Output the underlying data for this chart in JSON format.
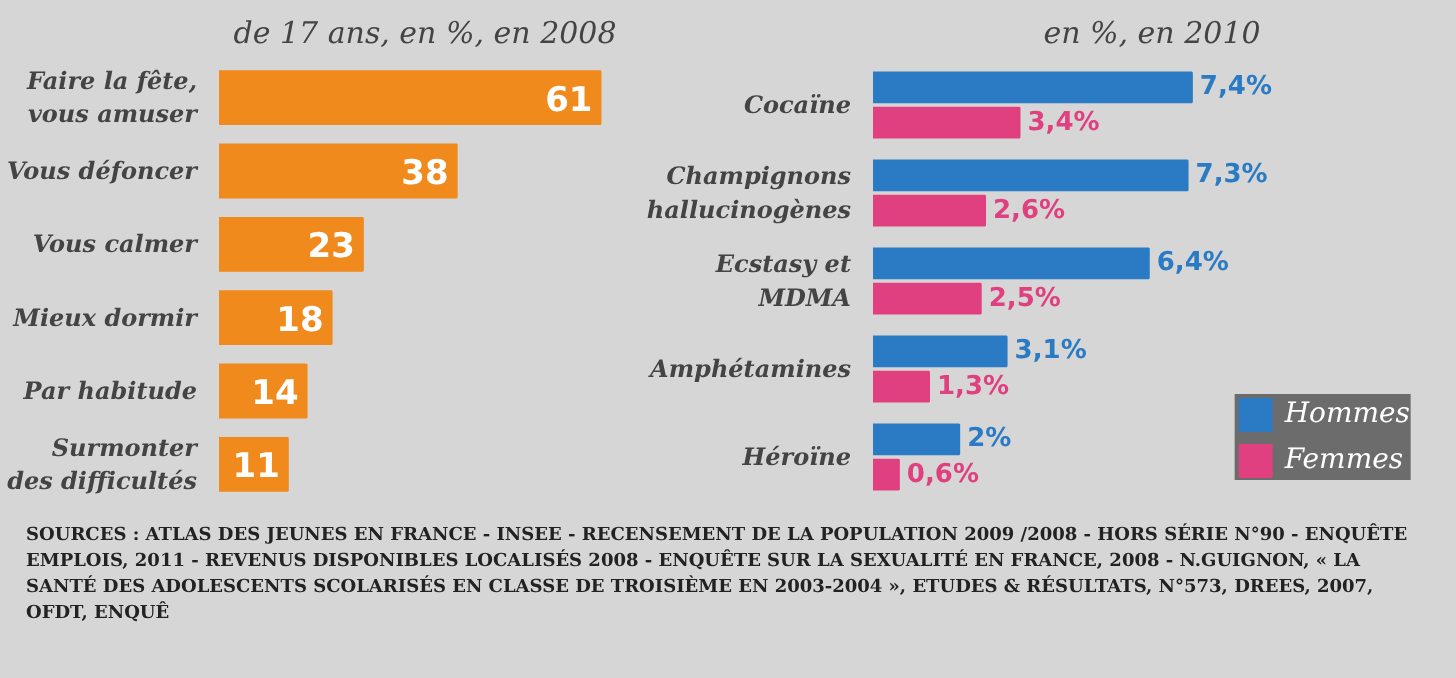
{
  "chart_data": [
    {
      "type": "bar",
      "orientation": "horizontal",
      "title": "de 17 ans, en %, en 2008",
      "categories": [
        "Faire la fête,\nvous amuser",
        "Vous défoncer",
        "Vous calmer",
        "Mieux dormir",
        "Par habitude",
        "Surmonter\ndes difficultés"
      ],
      "values": [
        61,
        38,
        23,
        18,
        14,
        11
      ],
      "color": "#f08a1c",
      "data_labels": true,
      "grid": false,
      "legend": false
    },
    {
      "type": "bar",
      "orientation": "horizontal",
      "title": "en %, en 2010",
      "categories": [
        "Cocaïne",
        "Champignons\nhallucinogènes",
        "Ecstasy et\nMDMA",
        "Amphétamines",
        "Héroïne"
      ],
      "series": [
        {
          "name": "Hommes",
          "color": "#2a7bc4",
          "values": [
            7.4,
            7.3,
            6.4,
            3.1,
            2
          ],
          "value_labels": [
            "7,4%",
            "7,3%",
            "6,4%",
            "3,1%",
            "2%"
          ]
        },
        {
          "name": "Femmes",
          "color": "#e0407f",
          "values": [
            3.4,
            2.6,
            2.5,
            1.3,
            0.6
          ],
          "value_labels": [
            "3,4%",
            "2,6%",
            "2,5%",
            "1,3%",
            "0,6%"
          ]
        }
      ],
      "grid": false,
      "legend": "bottom right",
      "annotations": [
        "SOURCES : ATLAS DES JEUNES EN FRANCE - INSEE - RECENSEMENT DE LA POPULATION 2009 /2008 - HORS SÉRIE N°90 - ENQUÊTE EMPLOIS, 2011 - REVENUS DISPONIBLES LOCALISÉS 2008 - ENQUÊTE SUR LA SEXUALITÉ EN FRANCE, 2008 - N.GUIGNON, « LA SANTÉ DES ADOLESCENTS SCOLARISÉS EN CLASSE DE TROISIÈME EN 2003-2004 », ETUDES & RÉSULTATS, N°573, DREES, 2007, OFDT, ENQUÊ"
      ]
    }
  ]
}
